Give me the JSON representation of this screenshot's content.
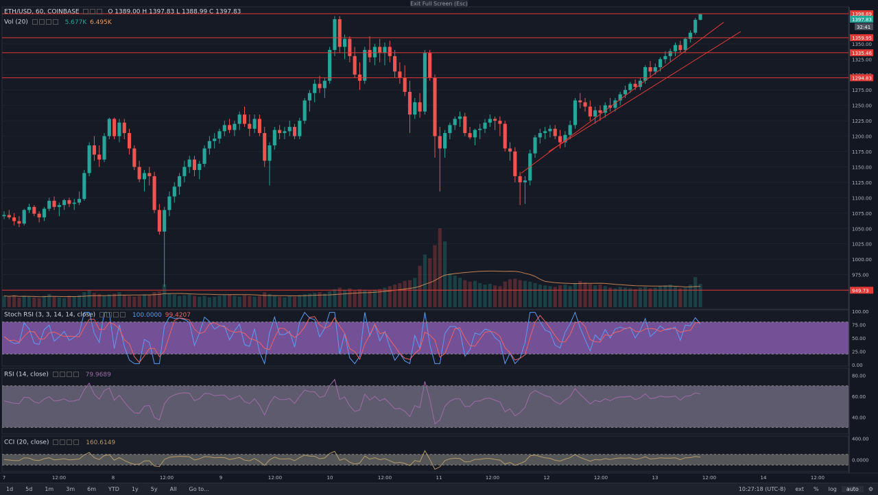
{
  "main_legend": {
    "symbol": "ETH/USD, 60, COINBASE",
    "ohlc": "O 1389.00  H 1397.83  L 1388.99  C 1397.83",
    "vol_label": "Vol (20)",
    "vol_value1": "5.677K",
    "vol_value2": "6.495K"
  },
  "exit_fullscreen": "Exit Full Screen (Esc)",
  "price_axis": {
    "ticks": [
      "1350.00",
      "1325.00",
      "1300.00",
      "1275.00",
      "1250.00",
      "1225.00",
      "1200.00",
      "1175.00",
      "1150.00",
      "1125.00",
      "1100.00",
      "1075.00",
      "1050.00",
      "1025.00",
      "1000.00",
      "975.00",
      "950.00"
    ],
    "tick_values": [
      1350,
      1325,
      1300,
      1275,
      1250,
      1225,
      1200,
      1175,
      1150,
      1125,
      1100,
      1075,
      1050,
      1025,
      1000,
      975,
      950
    ],
    "level_labels": [
      "1398.89",
      "1359.95",
      "1335.46",
      "1294.83",
      "949.73"
    ],
    "level_values": [
      1398.89,
      1359.95,
      1335.46,
      1294.83,
      949.73
    ],
    "last_price": "1397.83",
    "countdown": "32:41",
    "colors": {
      "level": "#e53935",
      "last": "#26a69a",
      "countdown": "#4a4e5a"
    }
  },
  "stoch_rsi": {
    "label": "Stoch RSI (3, 3, 14, 14, close)",
    "k_value": "100.0000",
    "d_value": "99.4207",
    "ticks": [
      "100.00",
      "75.00",
      "50.00",
      "25.00",
      "0.00"
    ],
    "colors": {
      "k": "#5b9cf6",
      "d": "#f06262",
      "band": "#c27ff5"
    }
  },
  "rsi": {
    "label": "RSI (14, close)",
    "value": "79.9689",
    "ticks": [
      "80.00",
      "60.00",
      "40.00"
    ],
    "colors": {
      "line": "#a16aa8",
      "band": "#e6d8f7"
    }
  },
  "cci": {
    "label": "CCI (20, close)",
    "value": "160.6149",
    "ticks": [
      "400.00",
      "0.0000"
    ],
    "colors": {
      "line": "#b59a6a",
      "band": "#e9e0cc"
    }
  },
  "time_axis": {
    "labels": [
      "7",
      "12:00",
      "8",
      "12:00",
      "9",
      "12:00",
      "10",
      "12:00",
      "11",
      "12:00",
      "12",
      "12:00",
      "13",
      "12:00",
      "14",
      "12:00"
    ]
  },
  "bottom_toolbar": {
    "timeframes": [
      "1d",
      "5d",
      "1m",
      "3m",
      "6m",
      "YTD",
      "1y",
      "5y",
      "All",
      "Go to..."
    ],
    "clock": "10:27:18 (UTC-8)",
    "ext": "ext",
    "pct": "%",
    "log": "log",
    "auto": "auto"
  },
  "chart_data": {
    "type": "candlestick",
    "title": "ETH/USD, 60, COINBASE",
    "ylim": [
      920,
      1410
    ],
    "colors": {
      "up": "#26a69a",
      "down": "#ef5350"
    },
    "candles": [
      [
        1070,
        1078,
        1065,
        1072
      ],
      [
        1072,
        1080,
        1065,
        1068
      ],
      [
        1068,
        1075,
        1055,
        1062
      ],
      [
        1062,
        1070,
        1052,
        1058
      ],
      [
        1058,
        1082,
        1055,
        1080
      ],
      [
        1080,
        1090,
        1075,
        1085
      ],
      [
        1085,
        1088,
        1070,
        1074
      ],
      [
        1074,
        1078,
        1060,
        1068
      ],
      [
        1068,
        1085,
        1062,
        1082
      ],
      [
        1082,
        1100,
        1078,
        1095
      ],
      [
        1095,
        1102,
        1080,
        1085
      ],
      [
        1085,
        1092,
        1070,
        1088
      ],
      [
        1088,
        1098,
        1080,
        1096
      ],
      [
        1096,
        1100,
        1085,
        1090
      ],
      [
        1090,
        1098,
        1080,
        1092
      ],
      [
        1092,
        1110,
        1088,
        1098
      ],
      [
        1098,
        1145,
        1095,
        1140
      ],
      [
        1140,
        1190,
        1135,
        1185
      ],
      [
        1185,
        1200,
        1160,
        1170
      ],
      [
        1170,
        1185,
        1150,
        1162
      ],
      [
        1162,
        1205,
        1158,
        1200
      ],
      [
        1200,
        1230,
        1195,
        1228
      ],
      [
        1228,
        1230,
        1195,
        1200
      ],
      [
        1200,
        1228,
        1190,
        1222
      ],
      [
        1222,
        1228,
        1195,
        1205
      ],
      [
        1205,
        1212,
        1170,
        1180
      ],
      [
        1180,
        1185,
        1145,
        1150
      ],
      [
        1150,
        1160,
        1125,
        1130
      ],
      [
        1130,
        1145,
        1110,
        1140
      ],
      [
        1140,
        1150,
        1120,
        1135
      ],
      [
        1135,
        1142,
        1075,
        1080
      ],
      [
        1080,
        1090,
        1040,
        1045
      ],
      [
        1045,
        1085,
        955,
        1080
      ],
      [
        1080,
        1110,
        1070,
        1102
      ],
      [
        1102,
        1125,
        1092,
        1118
      ],
      [
        1118,
        1140,
        1105,
        1135
      ],
      [
        1135,
        1160,
        1125,
        1150
      ],
      [
        1150,
        1168,
        1140,
        1162
      ],
      [
        1162,
        1168,
        1135,
        1145
      ],
      [
        1145,
        1160,
        1130,
        1155
      ],
      [
        1155,
        1185,
        1150,
        1180
      ],
      [
        1180,
        1200,
        1170,
        1192
      ],
      [
        1192,
        1205,
        1180,
        1196
      ],
      [
        1196,
        1212,
        1188,
        1208
      ],
      [
        1208,
        1225,
        1200,
        1218
      ],
      [
        1218,
        1228,
        1205,
        1210
      ],
      [
        1210,
        1225,
        1200,
        1220
      ],
      [
        1220,
        1240,
        1210,
        1235
      ],
      [
        1235,
        1248,
        1215,
        1220
      ],
      [
        1220,
        1235,
        1200,
        1212
      ],
      [
        1212,
        1235,
        1205,
        1228
      ],
      [
        1228,
        1235,
        1200,
        1205
      ],
      [
        1205,
        1215,
        1150,
        1160
      ],
      [
        1160,
        1190,
        1120,
        1185
      ],
      [
        1185,
        1215,
        1178,
        1210
      ],
      [
        1210,
        1218,
        1195,
        1205
      ],
      [
        1205,
        1215,
        1195,
        1208
      ],
      [
        1208,
        1225,
        1200,
        1215
      ],
      [
        1215,
        1220,
        1195,
        1200
      ],
      [
        1200,
        1230,
        1195,
        1225
      ],
      [
        1225,
        1262,
        1220,
        1258
      ],
      [
        1258,
        1275,
        1240,
        1270
      ],
      [
        1270,
        1292,
        1255,
        1285
      ],
      [
        1285,
        1298,
        1270,
        1278
      ],
      [
        1278,
        1295,
        1262,
        1290
      ],
      [
        1290,
        1345,
        1285,
        1340
      ],
      [
        1340,
        1395,
        1330,
        1390
      ],
      [
        1390,
        1395,
        1335,
        1345
      ],
      [
        1345,
        1365,
        1325,
        1358
      ],
      [
        1358,
        1362,
        1320,
        1330
      ],
      [
        1330,
        1345,
        1295,
        1300
      ],
      [
        1300,
        1320,
        1275,
        1290
      ],
      [
        1290,
        1345,
        1285,
        1340
      ],
      [
        1340,
        1362,
        1320,
        1328
      ],
      [
        1328,
        1350,
        1315,
        1345
      ],
      [
        1345,
        1358,
        1320,
        1335
      ],
      [
        1335,
        1352,
        1315,
        1345
      ],
      [
        1345,
        1355,
        1320,
        1330
      ],
      [
        1330,
        1340,
        1295,
        1305
      ],
      [
        1305,
        1320,
        1285,
        1295
      ],
      [
        1295,
        1315,
        1265,
        1272
      ],
      [
        1272,
        1290,
        1205,
        1235
      ],
      [
        1235,
        1262,
        1228,
        1255
      ],
      [
        1255,
        1270,
        1230,
        1240
      ],
      [
        1240,
        1340,
        1235,
        1335
      ],
      [
        1335,
        1340,
        1290,
        1295
      ],
      [
        1295,
        1300,
        1165,
        1200
      ],
      [
        1200,
        1215,
        1110,
        1180
      ],
      [
        1180,
        1210,
        1165,
        1205
      ],
      [
        1205,
        1222,
        1195,
        1218
      ],
      [
        1218,
        1232,
        1210,
        1228
      ],
      [
        1228,
        1240,
        1215,
        1232
      ],
      [
        1232,
        1238,
        1200,
        1205
      ],
      [
        1205,
        1215,
        1195,
        1198
      ],
      [
        1198,
        1212,
        1185,
        1210
      ],
      [
        1210,
        1220,
        1195,
        1212
      ],
      [
        1212,
        1228,
        1205,
        1222
      ],
      [
        1222,
        1235,
        1215,
        1228
      ],
      [
        1228,
        1232,
        1210,
        1225
      ],
      [
        1225,
        1232,
        1200,
        1220
      ],
      [
        1220,
        1225,
        1175,
        1180
      ],
      [
        1180,
        1190,
        1160,
        1175
      ],
      [
        1175,
        1182,
        1125,
        1135
      ],
      [
        1135,
        1142,
        1088,
        1125
      ],
      [
        1125,
        1135,
        1090,
        1128
      ],
      [
        1128,
        1178,
        1120,
        1172
      ],
      [
        1172,
        1202,
        1165,
        1198
      ],
      [
        1198,
        1212,
        1188,
        1205
      ],
      [
        1205,
        1215,
        1195,
        1208
      ],
      [
        1208,
        1218,
        1198,
        1212
      ],
      [
        1212,
        1218,
        1195,
        1200
      ],
      [
        1200,
        1210,
        1180,
        1190
      ],
      [
        1190,
        1208,
        1182,
        1202
      ],
      [
        1202,
        1225,
        1195,
        1218
      ],
      [
        1218,
        1262,
        1212,
        1258
      ],
      [
        1258,
        1270,
        1245,
        1255
      ],
      [
        1255,
        1262,
        1240,
        1248
      ],
      [
        1248,
        1258,
        1225,
        1232
      ],
      [
        1232,
        1248,
        1220,
        1242
      ],
      [
        1242,
        1250,
        1225,
        1238
      ],
      [
        1238,
        1255,
        1230,
        1250
      ],
      [
        1250,
        1262,
        1240,
        1246
      ],
      [
        1246,
        1262,
        1240,
        1258
      ],
      [
        1258,
        1272,
        1250,
        1268
      ],
      [
        1268,
        1282,
        1262,
        1275
      ],
      [
        1275,
        1288,
        1270,
        1285
      ],
      [
        1285,
        1292,
        1275,
        1280
      ],
      [
        1280,
        1295,
        1275,
        1290
      ],
      [
        1290,
        1315,
        1285,
        1312
      ],
      [
        1312,
        1322,
        1295,
        1305
      ],
      [
        1305,
        1318,
        1300,
        1312
      ],
      [
        1312,
        1328,
        1305,
        1325
      ],
      [
        1325,
        1338,
        1318,
        1330
      ],
      [
        1330,
        1342,
        1320,
        1338
      ],
      [
        1338,
        1352,
        1330,
        1348
      ],
      [
        1348,
        1355,
        1335,
        1340
      ],
      [
        1340,
        1360,
        1335,
        1358
      ],
      [
        1358,
        1372,
        1352,
        1368
      ],
      [
        1368,
        1392,
        1365,
        1389
      ],
      [
        1389,
        1398,
        1388,
        1398
      ]
    ],
    "volumes": [
      30,
      28,
      32,
      25,
      30,
      28,
      26,
      24,
      30,
      35,
      28,
      26,
      24,
      30,
      28,
      32,
      40,
      45,
      38,
      35,
      30,
      34,
      36,
      40,
      32,
      30,
      28,
      30,
      34,
      32,
      40,
      42,
      60,
      36,
      34,
      30,
      32,
      34,
      30,
      28,
      30,
      26,
      28,
      30,
      32,
      34,
      30,
      28,
      32,
      30,
      28,
      30,
      40,
      35,
      30,
      28,
      26,
      30,
      28,
      32,
      34,
      36,
      38,
      40,
      36,
      42,
      48,
      52,
      46,
      50,
      44,
      48,
      46,
      44,
      46,
      48,
      52,
      56,
      60,
      64,
      70,
      72,
      78,
      110,
      140,
      130,
      165,
      210,
      175,
      90,
      84,
      78,
      72,
      68,
      70,
      64,
      60,
      62,
      58,
      56,
      68,
      74,
      76,
      72,
      70,
      68,
      64,
      60,
      58,
      56,
      54,
      58,
      60,
      56,
      64,
      70,
      66,
      62,
      58,
      60,
      56,
      52,
      50,
      54,
      52,
      50,
      48,
      52,
      54,
      50,
      52,
      56,
      58,
      60,
      54,
      50,
      52,
      60,
      80,
      62
    ]
  }
}
